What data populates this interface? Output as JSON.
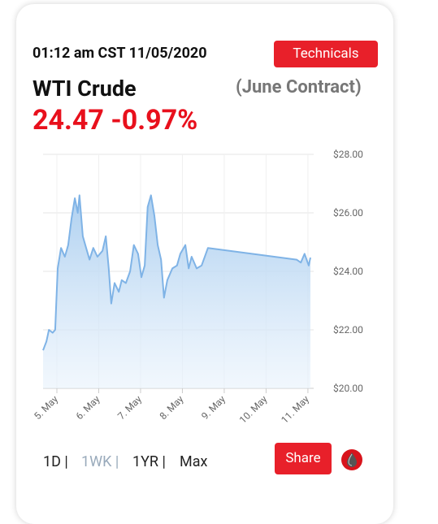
{
  "header": {
    "timestamp": "01:12 am CST 11/05/2020",
    "technicals_button": "Technicals",
    "name": "WTI Crude",
    "contract": "(June Contract)",
    "price": "24.47",
    "change": "-0.97%"
  },
  "chart_data": {
    "type": "area",
    "color": "#7fb3e6",
    "x": [
      4.67,
      4.75,
      4.81,
      4.9,
      4.96,
      5.02,
      5.1,
      5.19,
      5.27,
      5.35,
      5.43,
      5.5,
      5.54,
      5.62,
      5.7,
      5.78,
      5.87,
      5.97,
      6.09,
      6.17,
      6.24,
      6.3,
      6.38,
      6.48,
      6.55,
      6.65,
      6.75,
      6.84,
      6.94,
      7.02,
      7.1,
      7.17,
      7.25,
      7.33,
      7.41,
      7.49,
      7.56,
      7.64,
      7.76,
      7.87,
      7.95,
      8.07,
      8.15,
      8.22,
      8.34,
      8.46,
      8.61,
      10.73,
      10.83,
      10.92,
      11.02,
      11.06
    ],
    "values": [
      21.3,
      21.6,
      22.0,
      21.9,
      22.0,
      24.1,
      24.8,
      24.5,
      24.9,
      25.8,
      26.5,
      26.0,
      26.6,
      25.2,
      24.8,
      24.4,
      24.8,
      24.5,
      24.7,
      25.2,
      24.1,
      22.9,
      23.6,
      23.3,
      23.7,
      23.6,
      24.0,
      24.9,
      24.6,
      23.8,
      24.2,
      26.2,
      26.6,
      25.9,
      24.9,
      24.4,
      23.1,
      23.7,
      24.1,
      24.2,
      24.6,
      24.9,
      24.1,
      24.5,
      24.1,
      24.2,
      24.8,
      24.4,
      24.3,
      24.6,
      24.2,
      24.47
    ],
    "xlim": [
      4.67,
      11.06
    ],
    "xticks": [
      {
        "value": 5,
        "label": "5. May"
      },
      {
        "value": 6,
        "label": "6. May"
      },
      {
        "value": 7,
        "label": "7. May"
      },
      {
        "value": 8,
        "label": "8. May"
      },
      {
        "value": 9,
        "label": "9. May"
      },
      {
        "value": 10,
        "label": "10. May"
      },
      {
        "value": 11,
        "label": "11. May"
      }
    ],
    "ylim": [
      20,
      28
    ],
    "yticks": [
      {
        "value": 20,
        "label": "$20.00"
      },
      {
        "value": 22,
        "label": "$22.00"
      },
      {
        "value": 24,
        "label": "$24.00"
      },
      {
        "value": 26,
        "label": "$26.00"
      },
      {
        "value": 28,
        "label": "$28.00"
      }
    ],
    "grid": true
  },
  "footer": {
    "ranges": [
      "1D",
      "1WK",
      "1YR",
      "Max"
    ],
    "separator": "|",
    "share_button": "Share"
  }
}
